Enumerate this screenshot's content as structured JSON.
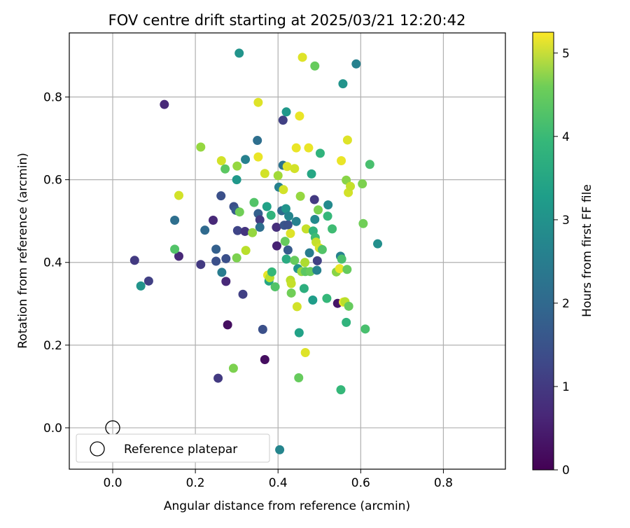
{
  "chart_data": {
    "type": "scatter",
    "title": "FOV centre drift starting at 2025/03/21 12:20:42",
    "xlabel": "Angular distance from reference (arcmin)",
    "ylabel": "Rotation from reference (arcmin)",
    "xlim": [
      -0.105,
      0.95
    ],
    "ylim": [
      -0.1,
      0.955
    ],
    "xticks": [
      0.0,
      0.2,
      0.4,
      0.6,
      0.8
    ],
    "xtick_labels": [
      "0.0",
      "0.2",
      "0.4",
      "0.6",
      "0.8"
    ],
    "yticks": [
      0.0,
      0.2,
      0.4,
      0.6,
      0.8
    ],
    "ytick_labels": [
      "0.0",
      "0.2",
      "0.4",
      "0.6",
      "0.8"
    ],
    "grid": true,
    "legend_position": "lower-left",
    "reference": {
      "label": "Reference platepar",
      "x": 0.0,
      "y": 0.0
    },
    "colorbar": {
      "label": "Hours from first FF file",
      "colormap": "viridis",
      "range": [
        0,
        5.25
      ],
      "ticks": [
        0,
        1,
        2,
        3,
        4,
        5
      ],
      "tick_labels": [
        "0",
        "1",
        "2",
        "3",
        "4",
        "5"
      ]
    },
    "points": [
      {
        "x": 0.125,
        "y": 0.782,
        "t": 0.6
      },
      {
        "x": 0.053,
        "y": 0.405,
        "t": 0.9
      },
      {
        "x": 0.087,
        "y": 0.355,
        "t": 1.0
      },
      {
        "x": 0.068,
        "y": 0.343,
        "t": 2.7
      },
      {
        "x": 0.16,
        "y": 0.415,
        "t": 0.6
      },
      {
        "x": 0.15,
        "y": 0.432,
        "t": 3.8
      },
      {
        "x": 0.15,
        "y": 0.502,
        "t": 1.9
      },
      {
        "x": 0.16,
        "y": 0.562,
        "t": 4.9
      },
      {
        "x": 0.213,
        "y": 0.679,
        "t": 4.4
      },
      {
        "x": 0.223,
        "y": 0.478,
        "t": 1.8
      },
      {
        "x": 0.213,
        "y": 0.395,
        "t": 0.9
      },
      {
        "x": 0.243,
        "y": 0.502,
        "t": 0.6
      },
      {
        "x": 0.25,
        "y": 0.432,
        "t": 1.6
      },
      {
        "x": 0.25,
        "y": 0.403,
        "t": 1.3
      },
      {
        "x": 0.262,
        "y": 0.561,
        "t": 1.3
      },
      {
        "x": 0.263,
        "y": 0.646,
        "t": 4.9
      },
      {
        "x": 0.264,
        "y": 0.376,
        "t": 2.2
      },
      {
        "x": 0.272,
        "y": 0.626,
        "t": 3.9
      },
      {
        "x": 0.274,
        "y": 0.409,
        "t": 1.3
      },
      {
        "x": 0.274,
        "y": 0.354,
        "t": 0.6
      },
      {
        "x": 0.278,
        "y": 0.249,
        "t": 0.2
      },
      {
        "x": 0.255,
        "y": 0.12,
        "t": 0.9
      },
      {
        "x": 0.292,
        "y": 0.144,
        "t": 4.2
      },
      {
        "x": 0.293,
        "y": 0.535,
        "t": 1.3
      },
      {
        "x": 0.298,
        "y": 0.526,
        "t": 1.5
      },
      {
        "x": 0.3,
        "y": 0.411,
        "t": 4.2
      },
      {
        "x": 0.3,
        "y": 0.6,
        "t": 2.8
      },
      {
        "x": 0.301,
        "y": 0.633,
        "t": 4.4
      },
      {
        "x": 0.302,
        "y": 0.477,
        "t": 1.1
      },
      {
        "x": 0.307,
        "y": 0.522,
        "t": 4.1
      },
      {
        "x": 0.306,
        "y": 0.906,
        "t": 2.7
      },
      {
        "x": 0.315,
        "y": 0.323,
        "t": 1.0
      },
      {
        "x": 0.32,
        "y": 0.475,
        "t": 0.8
      },
      {
        "x": 0.322,
        "y": 0.429,
        "t": 4.7
      },
      {
        "x": 0.321,
        "y": 0.649,
        "t": 2.3
      },
      {
        "x": 0.338,
        "y": 0.472,
        "t": 4.4
      },
      {
        "x": 0.342,
        "y": 0.545,
        "t": 3.8
      },
      {
        "x": 0.35,
        "y": 0.695,
        "t": 1.9
      },
      {
        "x": 0.352,
        "y": 0.518,
        "t": 1.6
      },
      {
        "x": 0.352,
        "y": 0.787,
        "t": 5.0
      },
      {
        "x": 0.352,
        "y": 0.655,
        "t": 5.1
      },
      {
        "x": 0.356,
        "y": 0.503,
        "t": 0.9
      },
      {
        "x": 0.356,
        "y": 0.485,
        "t": 1.9
      },
      {
        "x": 0.363,
        "y": 0.238,
        "t": 1.3
      },
      {
        "x": 0.368,
        "y": 0.165,
        "t": 0.2
      },
      {
        "x": 0.368,
        "y": 0.615,
        "t": 4.9
      },
      {
        "x": 0.373,
        "y": 0.535,
        "t": 3.0
      },
      {
        "x": 0.375,
        "y": 0.369,
        "t": 5.1
      },
      {
        "x": 0.378,
        "y": 0.355,
        "t": 3.1
      },
      {
        "x": 0.38,
        "y": 0.363,
        "t": 4.7
      },
      {
        "x": 0.383,
        "y": 0.514,
        "t": 3.4
      },
      {
        "x": 0.385,
        "y": 0.377,
        "t": 3.5
      },
      {
        "x": 0.393,
        "y": 0.341,
        "t": 3.8
      },
      {
        "x": 0.396,
        "y": 0.485,
        "t": 0.7
      },
      {
        "x": 0.397,
        "y": 0.44,
        "t": 0.5
      },
      {
        "x": 0.4,
        "y": 0.61,
        "t": 4.5
      },
      {
        "x": 0.402,
        "y": 0.582,
        "t": 2.3
      },
      {
        "x": 0.404,
        "y": -0.053,
        "t": 2.4
      },
      {
        "x": 0.409,
        "y": 0.525,
        "t": 1.8
      },
      {
        "x": 0.412,
        "y": 0.744,
        "t": 1.0
      },
      {
        "x": 0.412,
        "y": 0.635,
        "t": 2.0
      },
      {
        "x": 0.413,
        "y": 0.576,
        "t": 4.9
      },
      {
        "x": 0.415,
        "y": 0.49,
        "t": 1.4
      },
      {
        "x": 0.417,
        "y": 0.451,
        "t": 4.0
      },
      {
        "x": 0.419,
        "y": 0.53,
        "t": 2.7
      },
      {
        "x": 0.42,
        "y": 0.408,
        "t": 3.2
      },
      {
        "x": 0.42,
        "y": 0.764,
        "t": 2.8
      },
      {
        "x": 0.422,
        "y": 0.632,
        "t": 5.0
      },
      {
        "x": 0.424,
        "y": 0.491,
        "t": 1.3
      },
      {
        "x": 0.424,
        "y": 0.43,
        "t": 1.5
      },
      {
        "x": 0.426,
        "y": 0.512,
        "t": 2.4
      },
      {
        "x": 0.43,
        "y": 0.47,
        "t": 5.0
      },
      {
        "x": 0.43,
        "y": 0.357,
        "t": 4.7
      },
      {
        "x": 0.432,
        "y": 0.349,
        "t": 4.8
      },
      {
        "x": 0.432,
        "y": 0.326,
        "t": 4.1
      },
      {
        "x": 0.44,
        "y": 0.627,
        "t": 4.9
      },
      {
        "x": 0.44,
        "y": 0.405,
        "t": 4.0
      },
      {
        "x": 0.444,
        "y": 0.677,
        "t": 5.1
      },
      {
        "x": 0.444,
        "y": 0.499,
        "t": 2.3
      },
      {
        "x": 0.446,
        "y": 0.293,
        "t": 4.9
      },
      {
        "x": 0.448,
        "y": 0.385,
        "t": 2.7
      },
      {
        "x": 0.45,
        "y": 0.121,
        "t": 4.0
      },
      {
        "x": 0.451,
        "y": 0.23,
        "t": 3.0
      },
      {
        "x": 0.452,
        "y": 0.754,
        "t": 5.1
      },
      {
        "x": 0.454,
        "y": 0.56,
        "t": 4.4
      },
      {
        "x": 0.457,
        "y": 0.378,
        "t": 4.4
      },
      {
        "x": 0.459,
        "y": 0.896,
        "t": 5.0
      },
      {
        "x": 0.463,
        "y": 0.337,
        "t": 3.3
      },
      {
        "x": 0.465,
        "y": 0.4,
        "t": 4.6
      },
      {
        "x": 0.466,
        "y": 0.378,
        "t": 3.9
      },
      {
        "x": 0.466,
        "y": 0.182,
        "t": 5.0
      },
      {
        "x": 0.468,
        "y": 0.481,
        "t": 4.8
      },
      {
        "x": 0.474,
        "y": 0.677,
        "t": 5.1
      },
      {
        "x": 0.476,
        "y": 0.423,
        "t": 2.2
      },
      {
        "x": 0.478,
        "y": 0.378,
        "t": 4.0
      },
      {
        "x": 0.481,
        "y": 0.614,
        "t": 3.1
      },
      {
        "x": 0.484,
        "y": 0.309,
        "t": 2.9
      },
      {
        "x": 0.485,
        "y": 0.476,
        "t": 3.4
      },
      {
        "x": 0.488,
        "y": 0.552,
        "t": 0.9
      },
      {
        "x": 0.489,
        "y": 0.504,
        "t": 2.5
      },
      {
        "x": 0.489,
        "y": 0.875,
        "t": 4.0
      },
      {
        "x": 0.49,
        "y": 0.46,
        "t": 3.6
      },
      {
        "x": 0.492,
        "y": 0.449,
        "t": 4.8
      },
      {
        "x": 0.494,
        "y": 0.381,
        "t": 2.3
      },
      {
        "x": 0.495,
        "y": 0.404,
        "t": 1.0
      },
      {
        "x": 0.497,
        "y": 0.527,
        "t": 4.2
      },
      {
        "x": 0.5,
        "y": 0.435,
        "t": 4.9
      },
      {
        "x": 0.502,
        "y": 0.664,
        "t": 3.4
      },
      {
        "x": 0.507,
        "y": 0.431,
        "t": 3.8
      },
      {
        "x": 0.518,
        "y": 0.313,
        "t": 3.5
      },
      {
        "x": 0.52,
        "y": 0.512,
        "t": 3.5
      },
      {
        "x": 0.521,
        "y": 0.539,
        "t": 2.5
      },
      {
        "x": 0.531,
        "y": 0.481,
        "t": 3.6
      },
      {
        "x": 0.541,
        "y": 0.377,
        "t": 4.3
      },
      {
        "x": 0.544,
        "y": 0.301,
        "t": 0.3
      },
      {
        "x": 0.549,
        "y": 0.385,
        "t": 5.1
      },
      {
        "x": 0.551,
        "y": 0.415,
        "t": 2.3
      },
      {
        "x": 0.552,
        "y": 0.092,
        "t": 3.5
      },
      {
        "x": 0.553,
        "y": 0.646,
        "t": 5.1
      },
      {
        "x": 0.554,
        "y": 0.408,
        "t": 3.7
      },
      {
        "x": 0.557,
        "y": 0.832,
        "t": 2.7
      },
      {
        "x": 0.558,
        "y": 0.304,
        "t": 5.1
      },
      {
        "x": 0.562,
        "y": 0.305,
        "t": 4.7
      },
      {
        "x": 0.565,
        "y": 0.599,
        "t": 4.3
      },
      {
        "x": 0.565,
        "y": 0.255,
        "t": 3.4
      },
      {
        "x": 0.567,
        "y": 0.383,
        "t": 4.0
      },
      {
        "x": 0.568,
        "y": 0.696,
        "t": 5.0
      },
      {
        "x": 0.57,
        "y": 0.569,
        "t": 4.9
      },
      {
        "x": 0.571,
        "y": 0.294,
        "t": 4.0
      },
      {
        "x": 0.575,
        "y": 0.584,
        "t": 4.8
      },
      {
        "x": 0.589,
        "y": 0.88,
        "t": 2.3
      },
      {
        "x": 0.604,
        "y": 0.59,
        "t": 4.2
      },
      {
        "x": 0.606,
        "y": 0.494,
        "t": 4.1
      },
      {
        "x": 0.611,
        "y": 0.239,
        "t": 3.7
      },
      {
        "x": 0.622,
        "y": 0.637,
        "t": 3.7
      },
      {
        "x": 0.641,
        "y": 0.445,
        "t": 2.6
      }
    ]
  }
}
